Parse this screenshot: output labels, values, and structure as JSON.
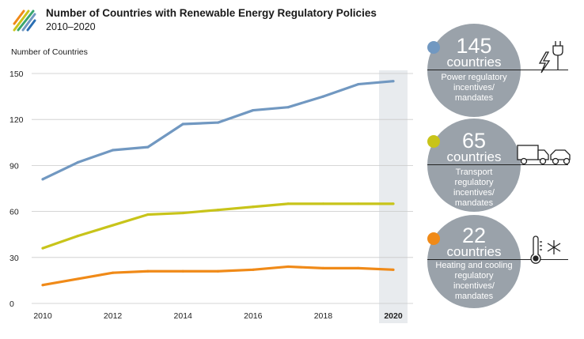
{
  "header": {
    "title": "Number of Countries with Renewable Energy Regulatory Policies",
    "subtitle": "2010–2020"
  },
  "chart_data": {
    "type": "line",
    "title": "Number of Countries with Renewable Energy Regulatory Policies",
    "subtitle": "2010–2020",
    "ylabel": "Number of Countries",
    "xlabel": "",
    "x": [
      2010,
      2011,
      2012,
      2013,
      2014,
      2015,
      2016,
      2017,
      2018,
      2019,
      2020
    ],
    "xticks": [
      2010,
      2012,
      2014,
      2016,
      2018,
      2020
    ],
    "yticks": [
      0,
      30,
      60,
      90,
      120,
      150
    ],
    "ylim": [
      0,
      150
    ],
    "xlim": [
      2010,
      2020
    ],
    "grid": "horizontal",
    "highlight_x": 2020,
    "series": [
      {
        "name": "Power regulatory incentives/mandates",
        "color": "#7198c1",
        "values": [
          81,
          92,
          100,
          102,
          117,
          118,
          126,
          128,
          135,
          143,
          145
        ]
      },
      {
        "name": "Transport regulatory incentives/mandates",
        "color": "#c8c41a",
        "values": [
          36,
          44,
          51,
          58,
          59,
          61,
          63,
          65,
          65,
          65,
          65
        ]
      },
      {
        "name": "Heating and cooling regulatory incentives/mandates",
        "color": "#f08a18",
        "values": [
          12,
          16,
          20,
          21,
          21,
          21,
          22,
          24,
          23,
          23,
          22
        ]
      }
    ]
  },
  "callouts": [
    {
      "number": "145",
      "unit": "countries",
      "desc": "Power regulatory incentives/ mandates",
      "color": "#7198c1",
      "icon": "power-plug-icon"
    },
    {
      "number": "65",
      "unit": "countries",
      "desc": "Transport regulatory incentives/ mandates",
      "color": "#c8c41a",
      "icon": "truck-car-icon"
    },
    {
      "number": "22",
      "unit": "countries",
      "desc": "Heating and cooling regulatory incentives/ mandates",
      "color": "#f08a18",
      "icon": "thermometer-snowflake-icon"
    }
  ]
}
